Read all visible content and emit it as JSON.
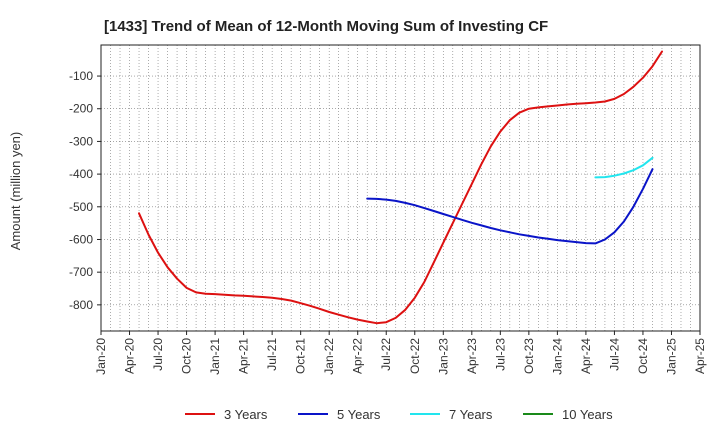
{
  "chart_data": {
    "type": "line",
    "title": "[1433]  Trend of Mean of 12-Month Moving Sum of Investing CF",
    "xlabel": "",
    "ylabel": "Amount (million yen)",
    "x_ticks": [
      "Jan-20",
      "Apr-20",
      "Jul-20",
      "Oct-20",
      "Jan-21",
      "Apr-21",
      "Jul-21",
      "Oct-21",
      "Jan-22",
      "Apr-22",
      "Jul-22",
      "Oct-22",
      "Jan-23",
      "Apr-23",
      "Jul-23",
      "Oct-23",
      "Jan-24",
      "Apr-24",
      "Jul-24",
      "Oct-24",
      "Jan-25",
      "Apr-25"
    ],
    "y_ticks": [
      -800,
      -700,
      -600,
      -500,
      -400,
      -300,
      -200,
      -100
    ],
    "ylim": [
      -880,
      -5
    ],
    "grid": true,
    "legend_position": "bottom",
    "series": [
      {
        "name": "3 Years",
        "color": "#dd1111",
        "points": [
          [
            "May-20",
            -520
          ],
          [
            "Jun-20",
            -585
          ],
          [
            "Jul-20",
            -640
          ],
          [
            "Aug-20",
            -685
          ],
          [
            "Sep-20",
            -720
          ],
          [
            "Oct-20",
            -748
          ],
          [
            "Nov-20",
            -762
          ],
          [
            "Dec-20",
            -766
          ],
          [
            "Jan-21",
            -767
          ],
          [
            "Feb-21",
            -769
          ],
          [
            "Mar-21",
            -771
          ],
          [
            "Apr-21",
            -772
          ],
          [
            "May-21",
            -774
          ],
          [
            "Jun-21",
            -776
          ],
          [
            "Jul-21",
            -778
          ],
          [
            "Aug-21",
            -782
          ],
          [
            "Sep-21",
            -787
          ],
          [
            "Oct-21",
            -795
          ],
          [
            "Nov-21",
            -803
          ],
          [
            "Dec-21",
            -812
          ],
          [
            "Jan-22",
            -822
          ],
          [
            "Feb-22",
            -830
          ],
          [
            "Mar-22",
            -838
          ],
          [
            "Apr-22",
            -845
          ],
          [
            "May-22",
            -851
          ],
          [
            "Jun-22",
            -856
          ],
          [
            "Jul-22",
            -853
          ],
          [
            "Aug-22",
            -840
          ],
          [
            "Sep-22",
            -815
          ],
          [
            "Oct-22",
            -778
          ],
          [
            "Nov-22",
            -730
          ],
          [
            "Dec-22",
            -670
          ],
          [
            "Jan-23",
            -610
          ],
          [
            "Feb-23",
            -550
          ],
          [
            "Mar-23",
            -490
          ],
          [
            "Apr-23",
            -430
          ],
          [
            "May-23",
            -370
          ],
          [
            "Jun-23",
            -315
          ],
          [
            "Jul-23",
            -270
          ],
          [
            "Aug-23",
            -235
          ],
          [
            "Sep-23",
            -212
          ],
          [
            "Oct-23",
            -200
          ],
          [
            "Nov-23",
            -196
          ],
          [
            "Dec-23",
            -193
          ],
          [
            "Jan-24",
            -190
          ],
          [
            "Feb-24",
            -187
          ],
          [
            "Mar-24",
            -185
          ],
          [
            "Apr-24",
            -183
          ],
          [
            "May-24",
            -181
          ],
          [
            "Jun-24",
            -178
          ],
          [
            "Jul-24",
            -170
          ],
          [
            "Aug-24",
            -155
          ],
          [
            "Sep-24",
            -133
          ],
          [
            "Oct-24",
            -105
          ],
          [
            "Nov-24",
            -70
          ],
          [
            "Dec-24",
            -25
          ]
        ]
      },
      {
        "name": "5 Years",
        "color": "#0a14c8",
        "points": [
          [
            "May-22",
            -475
          ],
          [
            "Jun-22",
            -476
          ],
          [
            "Jul-22",
            -478
          ],
          [
            "Aug-22",
            -482
          ],
          [
            "Sep-22",
            -488
          ],
          [
            "Oct-22",
            -495
          ],
          [
            "Nov-22",
            -504
          ],
          [
            "Dec-22",
            -513
          ],
          [
            "Jan-23",
            -522
          ],
          [
            "Feb-23",
            -531
          ],
          [
            "Mar-23",
            -540
          ],
          [
            "Apr-23",
            -549
          ],
          [
            "May-23",
            -557
          ],
          [
            "Jun-23",
            -565
          ],
          [
            "Jul-23",
            -572
          ],
          [
            "Aug-23",
            -578
          ],
          [
            "Sep-23",
            -584
          ],
          [
            "Oct-23",
            -589
          ],
          [
            "Nov-23",
            -594
          ],
          [
            "Dec-23",
            -598
          ],
          [
            "Jan-24",
            -602
          ],
          [
            "Feb-24",
            -605
          ],
          [
            "Mar-24",
            -608
          ],
          [
            "Apr-24",
            -611
          ],
          [
            "May-24",
            -612
          ],
          [
            "Jun-24",
            -600
          ],
          [
            "Jul-24",
            -578
          ],
          [
            "Aug-24",
            -545
          ],
          [
            "Sep-24",
            -500
          ],
          [
            "Oct-24",
            -445
          ],
          [
            "Nov-24",
            -385
          ]
        ]
      },
      {
        "name": "7 Years",
        "color": "#22e5ee",
        "points": [
          [
            "May-24",
            -410
          ],
          [
            "Jun-24",
            -409
          ],
          [
            "Jul-24",
            -405
          ],
          [
            "Aug-24",
            -398
          ],
          [
            "Sep-24",
            -388
          ],
          [
            "Oct-24",
            -373
          ],
          [
            "Nov-24",
            -350
          ]
        ]
      },
      {
        "name": "10 Years",
        "color": "#1a8a1a",
        "points": []
      }
    ]
  }
}
